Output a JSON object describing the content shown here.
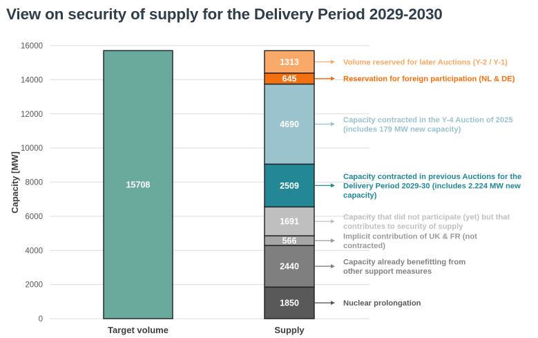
{
  "chart_data": {
    "type": "bar",
    "stacked": true,
    "title": "View on security of supply for the Delivery Period 2029-2030",
    "xlabel": "",
    "ylabel": "Capacity [MW]",
    "ylim": [
      0,
      16000
    ],
    "yticks": [
      0,
      2000,
      4000,
      6000,
      8000,
      10000,
      12000,
      14000,
      16000
    ],
    "grid": true,
    "categories": [
      "Target volume",
      "Supply"
    ],
    "series": [
      {
        "category": "Target volume",
        "name": "Target volume",
        "value": 15708,
        "color": "#6aaa9c",
        "annotation": ""
      },
      {
        "category": "Supply",
        "name": "Nuclear prolongation",
        "value": 1850,
        "color": "#595959",
        "annotation": "Nuclear prolongation",
        "annotation_color": "#595959"
      },
      {
        "category": "Supply",
        "name": "Capacity already benefitting from other support measures",
        "value": 2440,
        "color": "#7f7f7f",
        "annotation": "Capacity already benefitting from|other support measures",
        "annotation_color": "#808080"
      },
      {
        "category": "Supply",
        "name": "Implicit contribution of UK & FR (not contracted)",
        "value": 566,
        "color": "#a6a6a6",
        "annotation": "Implicit contribution of UK & FR (not|contracted)",
        "annotation_color": "#999999"
      },
      {
        "category": "Supply",
        "name": "Capacity that did not participate (yet) but that contributes to security of supply",
        "value": 1691,
        "color": "#bfbfbf",
        "annotation": "Capacity that did not participate (yet) but that|contributes to security of supply",
        "annotation_color": "#c0c0c0"
      },
      {
        "category": "Supply",
        "name": "Capacity contracted in previous Auctions for the Delivery Period 2029-30 (includes 2.224 MW new capacity)",
        "value": 2509,
        "color": "#238796",
        "annotation": "Capacity contracted in previous Auctions for the|Delivery Period 2029-30 (includes 2.224 MW new|capacity)",
        "annotation_color": "#238796"
      },
      {
        "category": "Supply",
        "name": "Capacity contracted in the Y-4 Auction of 2025 (includes 179 MW new capacity)",
        "value": 4690,
        "color": "#9bc3cd",
        "annotation": "Capacity contracted in the Y-4 Auction of 2025|(includes 179 MW new capacity)",
        "annotation_color": "#9bc3cd"
      },
      {
        "category": "Supply",
        "name": "Reservation for foreign participation (NL & DE)",
        "value": 645,
        "color": "#f27010",
        "annotation": "Reservation for foreign participation (NL & DE)",
        "annotation_color": "#f27010"
      },
      {
        "category": "Supply",
        "name": "Volume reserved for later Auctions (Y-2 / Y-1)",
        "value": 1313,
        "color": "#f9a96a",
        "annotation": "Volume reserved for later Auctions (Y-2 / Y-1)",
        "annotation_color": "#f9a96a"
      }
    ],
    "legend": "none (annotations to the right of Supply bar)"
  }
}
